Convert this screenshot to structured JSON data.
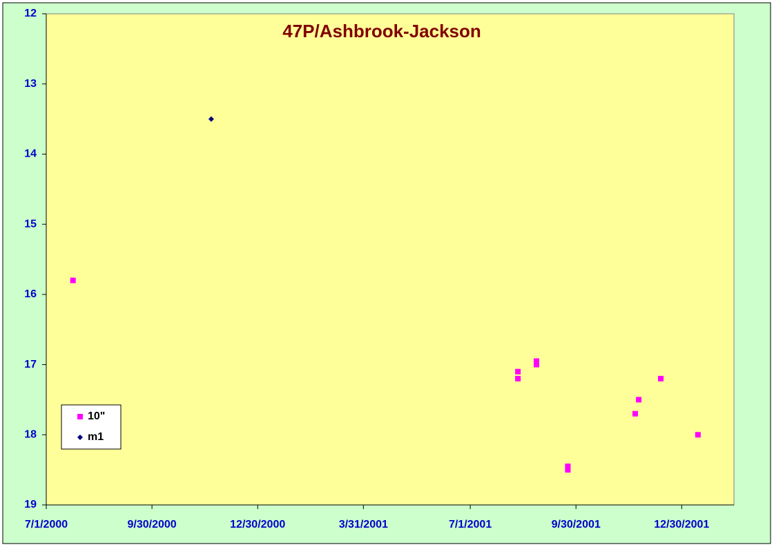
{
  "chart_data": {
    "type": "scatter",
    "title": "47P/Ashbrook-Jackson",
    "series": [
      {
        "name": "10\"",
        "color": "#ff00ff",
        "marker": "square",
        "x": [
          "2000-07-24",
          "2001-08-11",
          "2001-08-11",
          "2001-08-27",
          "2001-08-27",
          "2001-09-23",
          "2001-09-23",
          "2001-11-20",
          "2001-11-23",
          "2001-12-12",
          "2002-01-13"
        ],
        "values": [
          15.8,
          17.1,
          17.2,
          16.95,
          17.0,
          18.45,
          18.5,
          17.7,
          17.5,
          17.2,
          18.0
        ]
      },
      {
        "name": "m1",
        "color": "#000080",
        "marker": "diamond",
        "x": [
          "2000-11-20"
        ],
        "values": [
          13.5
        ]
      }
    ],
    "xlim": [
      "2000-07-01",
      "2002-02-13"
    ],
    "xticks": [
      {
        "value": "2000-07-01",
        "label": "7/1/2000"
      },
      {
        "value": "2000-09-30",
        "label": "9/30/2000"
      },
      {
        "value": "2000-12-30",
        "label": "12/30/2000"
      },
      {
        "value": "2001-03-31",
        "label": "3/31/2001"
      },
      {
        "value": "2001-07-01",
        "label": "7/1/2001"
      },
      {
        "value": "2001-09-30",
        "label": "9/30/2001"
      },
      {
        "value": "2001-12-30",
        "label": "12/30/2001"
      }
    ],
    "ylim": [
      19,
      12
    ],
    "yticks": [
      12,
      13,
      14,
      15,
      16,
      17,
      18,
      19
    ],
    "y_inverted": true,
    "grid": false,
    "legend": "lower left",
    "plot_background": "#ffff99",
    "background": "#ccffcc"
  }
}
